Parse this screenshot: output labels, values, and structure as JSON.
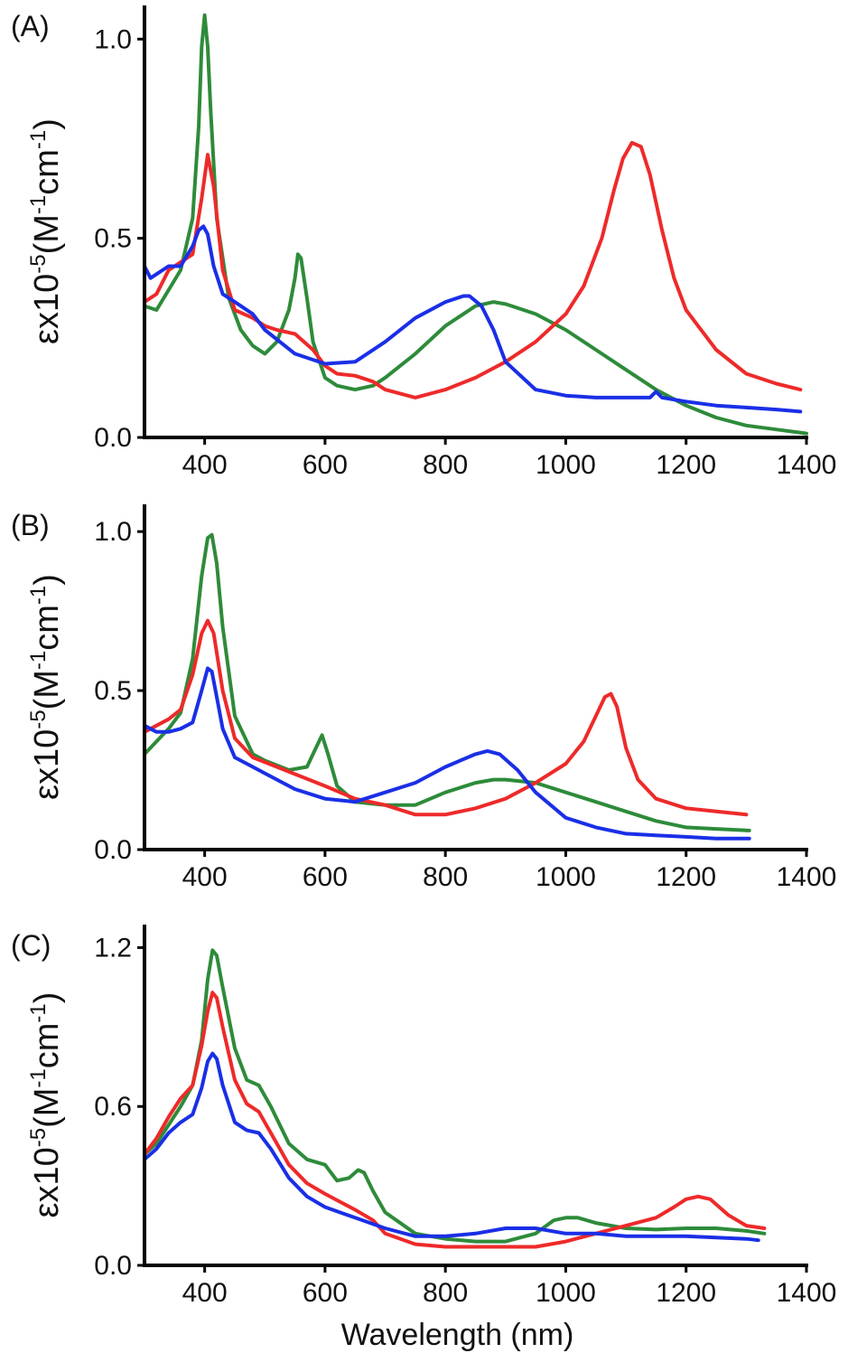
{
  "chart_data": [
    {
      "type": "line",
      "panel_label": "(A)",
      "ylabel": {
        "base": "εx10",
        "exp1": "-5",
        "mid1": "(M",
        "exp2": "-1",
        "mid2": "cm",
        "exp3": "-1",
        "end": ")"
      },
      "xlabel": "",
      "xlim": [
        300,
        1400
      ],
      "ylim": [
        0,
        1.08
      ],
      "xticks": [
        400,
        600,
        800,
        1000,
        1200,
        1400
      ],
      "yticks": [
        0.0,
        0.5,
        1.0
      ],
      "ytick_labels": [
        "0.0",
        "0.5",
        "1.0"
      ],
      "grid": false,
      "series": [
        {
          "color": "#2e8b3a",
          "x": [
            300,
            320,
            340,
            360,
            380,
            390,
            395,
            400,
            405,
            410,
            420,
            440,
            460,
            480,
            500,
            520,
            540,
            550,
            555,
            560,
            570,
            580,
            600,
            620,
            650,
            680,
            700,
            750,
            800,
            850,
            880,
            900,
            950,
            1000,
            1050,
            1100,
            1150,
            1200,
            1250,
            1300,
            1350,
            1400
          ],
          "y": [
            0.33,
            0.32,
            0.37,
            0.42,
            0.55,
            0.78,
            0.98,
            1.06,
            0.98,
            0.82,
            0.55,
            0.35,
            0.27,
            0.23,
            0.21,
            0.24,
            0.32,
            0.4,
            0.46,
            0.45,
            0.35,
            0.24,
            0.15,
            0.13,
            0.12,
            0.13,
            0.15,
            0.21,
            0.28,
            0.33,
            0.34,
            0.335,
            0.31,
            0.27,
            0.22,
            0.17,
            0.12,
            0.08,
            0.05,
            0.03,
            0.02,
            0.01
          ]
        },
        {
          "color": "#ee2a2a",
          "x": [
            300,
            320,
            340,
            360,
            380,
            395,
            405,
            415,
            430,
            450,
            480,
            500,
            520,
            550,
            580,
            600,
            620,
            650,
            680,
            700,
            750,
            800,
            850,
            900,
            950,
            1000,
            1030,
            1060,
            1080,
            1095,
            1110,
            1125,
            1140,
            1160,
            1180,
            1200,
            1250,
            1300,
            1350,
            1390
          ],
          "y": [
            0.34,
            0.36,
            0.42,
            0.44,
            0.46,
            0.6,
            0.71,
            0.63,
            0.42,
            0.32,
            0.3,
            0.28,
            0.27,
            0.26,
            0.22,
            0.18,
            0.16,
            0.155,
            0.14,
            0.12,
            0.1,
            0.12,
            0.15,
            0.19,
            0.24,
            0.31,
            0.38,
            0.5,
            0.62,
            0.7,
            0.74,
            0.73,
            0.66,
            0.52,
            0.4,
            0.32,
            0.22,
            0.16,
            0.135,
            0.12
          ]
        },
        {
          "color": "#1a2fe6",
          "x": [
            300,
            310,
            320,
            340,
            360,
            380,
            390,
            398,
            405,
            415,
            430,
            450,
            480,
            500,
            550,
            600,
            650,
            700,
            750,
            800,
            830,
            840,
            860,
            880,
            900,
            950,
            1000,
            1050,
            1100,
            1140,
            1150,
            1160,
            1200,
            1250,
            1300,
            1350,
            1390
          ],
          "y": [
            0.43,
            0.4,
            0.41,
            0.43,
            0.43,
            0.48,
            0.52,
            0.53,
            0.51,
            0.43,
            0.36,
            0.34,
            0.31,
            0.27,
            0.21,
            0.185,
            0.19,
            0.24,
            0.3,
            0.34,
            0.355,
            0.355,
            0.33,
            0.27,
            0.19,
            0.12,
            0.105,
            0.1,
            0.1,
            0.1,
            0.115,
            0.1,
            0.09,
            0.08,
            0.075,
            0.07,
            0.065
          ]
        }
      ]
    },
    {
      "type": "line",
      "panel_label": "(B)",
      "ylabel": {
        "base": "εx10",
        "exp1": "-5",
        "mid1": "(M",
        "exp2": "-1",
        "mid2": "cm",
        "exp3": "-1",
        "end": ")"
      },
      "xlabel": "",
      "xlim": [
        300,
        1400
      ],
      "ylim": [
        0,
        1.08
      ],
      "xticks": [
        400,
        600,
        800,
        1000,
        1200,
        1400
      ],
      "yticks": [
        0.0,
        0.5,
        1.0
      ],
      "ytick_labels": [
        "0.0",
        "0.5",
        "1.0"
      ],
      "grid": false,
      "series": [
        {
          "color": "#2e8b3a",
          "x": [
            300,
            320,
            340,
            360,
            380,
            395,
            405,
            412,
            420,
            430,
            450,
            480,
            500,
            540,
            570,
            585,
            595,
            605,
            620,
            650,
            700,
            750,
            800,
            850,
            880,
            900,
            950,
            1000,
            1050,
            1100,
            1150,
            1200,
            1250,
            1305
          ],
          "y": [
            0.3,
            0.34,
            0.38,
            0.43,
            0.6,
            0.86,
            0.98,
            0.99,
            0.9,
            0.7,
            0.42,
            0.3,
            0.28,
            0.25,
            0.26,
            0.32,
            0.36,
            0.3,
            0.2,
            0.15,
            0.14,
            0.14,
            0.18,
            0.21,
            0.22,
            0.22,
            0.21,
            0.18,
            0.15,
            0.12,
            0.09,
            0.07,
            0.065,
            0.06
          ]
        },
        {
          "color": "#ee2a2a",
          "x": [
            300,
            320,
            340,
            360,
            380,
            395,
            405,
            415,
            430,
            450,
            480,
            520,
            560,
            600,
            650,
            700,
            750,
            800,
            850,
            900,
            950,
            1000,
            1030,
            1050,
            1065,
            1075,
            1085,
            1100,
            1120,
            1150,
            1200,
            1250,
            1300
          ],
          "y": [
            0.37,
            0.39,
            0.41,
            0.44,
            0.55,
            0.68,
            0.72,
            0.68,
            0.5,
            0.35,
            0.29,
            0.26,
            0.23,
            0.2,
            0.16,
            0.14,
            0.11,
            0.11,
            0.13,
            0.16,
            0.21,
            0.27,
            0.34,
            0.42,
            0.48,
            0.49,
            0.45,
            0.32,
            0.22,
            0.16,
            0.13,
            0.12,
            0.11
          ]
        },
        {
          "color": "#1a2fe6",
          "x": [
            300,
            320,
            340,
            360,
            380,
            395,
            405,
            412,
            420,
            430,
            450,
            480,
            500,
            550,
            600,
            650,
            700,
            750,
            800,
            850,
            870,
            890,
            920,
            950,
            1000,
            1050,
            1100,
            1150,
            1200,
            1250,
            1305
          ],
          "y": [
            0.39,
            0.37,
            0.37,
            0.38,
            0.4,
            0.5,
            0.57,
            0.56,
            0.48,
            0.38,
            0.29,
            0.26,
            0.24,
            0.19,
            0.16,
            0.15,
            0.18,
            0.21,
            0.26,
            0.3,
            0.31,
            0.3,
            0.25,
            0.18,
            0.1,
            0.07,
            0.05,
            0.045,
            0.04,
            0.035,
            0.035
          ]
        }
      ]
    },
    {
      "type": "line",
      "panel_label": "(C)",
      "ylabel": {
        "base": "εx10",
        "exp1": "-5",
        "mid1": "(M",
        "exp2": "-1",
        "mid2": "cm",
        "exp3": "-1",
        "end": ")"
      },
      "xlabel": "Wavelength (nm)",
      "xlim": [
        300,
        1400
      ],
      "ylim": [
        0,
        1.28
      ],
      "xticks": [
        400,
        600,
        800,
        1000,
        1200,
        1400
      ],
      "yticks": [
        0.0,
        0.6,
        1.2
      ],
      "ytick_labels": [
        "0.0",
        "0.6",
        "1.2"
      ],
      "grid": false,
      "series": [
        {
          "color": "#2e8b3a",
          "x": [
            300,
            320,
            340,
            360,
            380,
            395,
            405,
            413,
            420,
            430,
            450,
            470,
            490,
            510,
            540,
            570,
            600,
            620,
            640,
            655,
            665,
            680,
            700,
            750,
            800,
            850,
            900,
            950,
            980,
            1000,
            1020,
            1050,
            1100,
            1150,
            1200,
            1250,
            1300,
            1330
          ],
          "y": [
            0.42,
            0.46,
            0.53,
            0.6,
            0.68,
            0.85,
            1.08,
            1.19,
            1.17,
            1.05,
            0.82,
            0.7,
            0.68,
            0.6,
            0.46,
            0.4,
            0.38,
            0.32,
            0.33,
            0.36,
            0.35,
            0.28,
            0.2,
            0.12,
            0.1,
            0.09,
            0.09,
            0.12,
            0.17,
            0.18,
            0.18,
            0.16,
            0.14,
            0.135,
            0.14,
            0.14,
            0.13,
            0.12
          ]
        },
        {
          "color": "#ee2a2a",
          "x": [
            300,
            320,
            340,
            360,
            380,
            395,
            405,
            413,
            420,
            430,
            450,
            470,
            490,
            510,
            540,
            570,
            600,
            650,
            680,
            700,
            750,
            800,
            850,
            900,
            950,
            1000,
            1050,
            1100,
            1150,
            1180,
            1200,
            1220,
            1240,
            1270,
            1300,
            1330
          ],
          "y": [
            0.42,
            0.48,
            0.56,
            0.63,
            0.68,
            0.83,
            0.96,
            1.03,
            1.01,
            0.9,
            0.7,
            0.61,
            0.58,
            0.5,
            0.38,
            0.31,
            0.27,
            0.21,
            0.17,
            0.12,
            0.08,
            0.07,
            0.07,
            0.07,
            0.07,
            0.09,
            0.12,
            0.15,
            0.18,
            0.22,
            0.25,
            0.26,
            0.25,
            0.19,
            0.15,
            0.14
          ]
        },
        {
          "color": "#1a2fe6",
          "x": [
            300,
            320,
            340,
            360,
            380,
            395,
            405,
            413,
            420,
            430,
            450,
            470,
            490,
            510,
            540,
            570,
            600,
            650,
            700,
            750,
            800,
            850,
            900,
            950,
            1000,
            1050,
            1100,
            1150,
            1200,
            1250,
            1300,
            1320
          ],
          "y": [
            0.4,
            0.44,
            0.5,
            0.54,
            0.57,
            0.67,
            0.77,
            0.8,
            0.78,
            0.68,
            0.54,
            0.51,
            0.5,
            0.44,
            0.33,
            0.26,
            0.22,
            0.18,
            0.14,
            0.11,
            0.11,
            0.12,
            0.14,
            0.14,
            0.12,
            0.12,
            0.11,
            0.11,
            0.11,
            0.105,
            0.1,
            0.095
          ]
        }
      ]
    }
  ]
}
